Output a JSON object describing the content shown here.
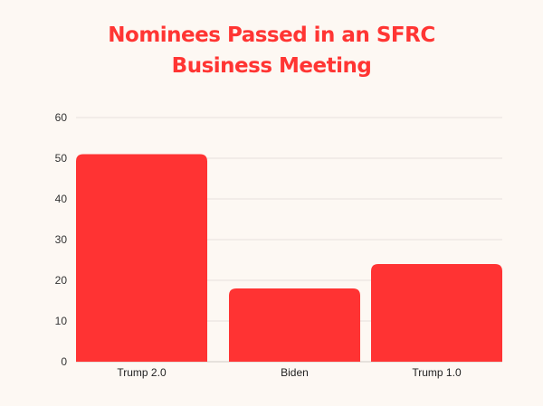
{
  "chart_data": {
    "type": "bar",
    "title_lines": [
      "Nominees Passed in an SFRC",
      "Business Meeting"
    ],
    "categories": [
      "Trump 2.0",
      "Biden",
      "Trump 1.0"
    ],
    "values": [
      51,
      18,
      24
    ],
    "xlabel": "",
    "ylabel": "",
    "ylim": [
      0,
      60
    ],
    "yticks": [
      0,
      10,
      20,
      30,
      40,
      50,
      60
    ],
    "grid": true,
    "legend": "none",
    "bar_color": "#ff3333",
    "grid_color": "#e6e1dc"
  }
}
